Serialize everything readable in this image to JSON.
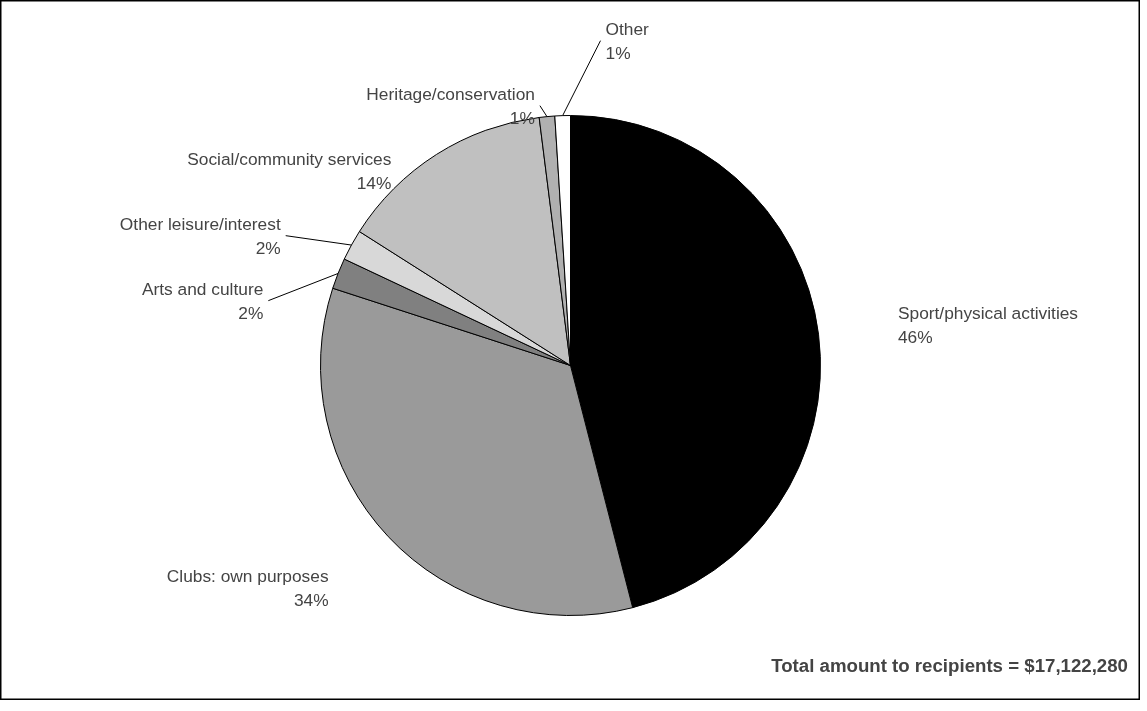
{
  "chart_data": {
    "type": "pie",
    "categories": [
      "Sport/physical activities",
      "Clubs: own purposes",
      "Arts and culture",
      "Other leisure/interest",
      "Social/community services",
      "Heritage/conservation",
      "Other"
    ],
    "values": [
      46,
      34,
      2,
      2,
      14,
      1,
      1
    ],
    "colors": [
      "#000000",
      "#9a9a9a",
      "#808080",
      "#d8d8d8",
      "#c0c0c0",
      "#b0b0b0",
      "#ffffff"
    ],
    "value_labels": [
      "46%",
      "34%",
      "2%",
      "2%",
      "14%",
      "1%",
      "1%"
    ],
    "annotations": [
      "Total amount to recipients = $17,122,280"
    ]
  }
}
